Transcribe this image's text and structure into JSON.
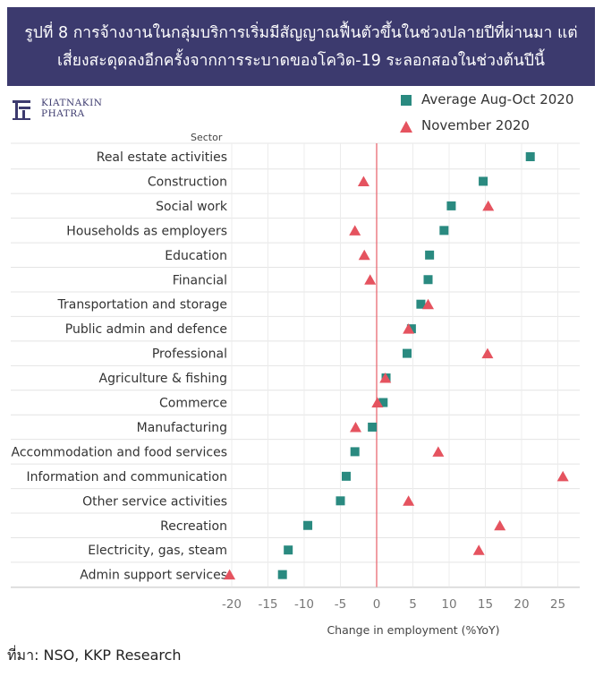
{
  "header": {
    "title_line1": "รูปที่ 8 การจ้างงานในกลุ่มบริการเริ่มมีสัญญาณฟื้นตัวขึ้นในช่วงปลายปีที่ผ่านมา แต่",
    "title_line2": "เสี่ยงสะดุดลงอีกครั้งจากการระบาดของโควิด-19 ระลอกสองในช่วงต้นปีนี้"
  },
  "logo": {
    "line1": "KIATNAKIN",
    "line2": "PHATRA"
  },
  "source": "ที่มา: NSO, KKP Research",
  "colors": {
    "average": "#2a8a80",
    "november": "#e5535f",
    "zero_line": "#e96a72",
    "header_bg": "#3c3a6e"
  },
  "chart_data": {
    "type": "scatter",
    "title": "",
    "ylabel": "Sector",
    "xlabel": "Change in employment (%YoY)",
    "xlim": [
      -22,
      28
    ],
    "xticks": [
      -20,
      -15,
      -10,
      -5,
      0,
      5,
      10,
      15,
      20,
      25
    ],
    "grid": true,
    "legend_position": "top-right",
    "categories": [
      "Real estate activities",
      "Construction",
      "Social work",
      "Households as employers",
      "Education",
      "Financial",
      "Transportation and storage",
      "Public admin and defence",
      "Professional",
      "Agriculture & fishing",
      "Commerce",
      "Manufacturing",
      "Accommodation and food services",
      "Information and communication",
      "Other service activities",
      "Recreation",
      "Electricity, gas, steam",
      "Admin support services"
    ],
    "series": [
      {
        "name": "Average Aug-Oct 2020",
        "marker": "square",
        "values": [
          21.2,
          14.7,
          10.3,
          9.3,
          7.3,
          7.1,
          6.1,
          4.8,
          4.2,
          1.3,
          0.9,
          -0.6,
          -3.0,
          -4.2,
          -5.0,
          -9.5,
          -12.2,
          -13.0
        ]
      },
      {
        "name": "November 2020",
        "marker": "triangle",
        "values": [
          null,
          -1.8,
          15.4,
          -3.0,
          -1.7,
          -0.9,
          7.1,
          4.4,
          15.3,
          1.2,
          0.1,
          -2.9,
          8.5,
          25.7,
          4.4,
          17.0,
          14.1,
          -20.3
        ]
      }
    ]
  }
}
